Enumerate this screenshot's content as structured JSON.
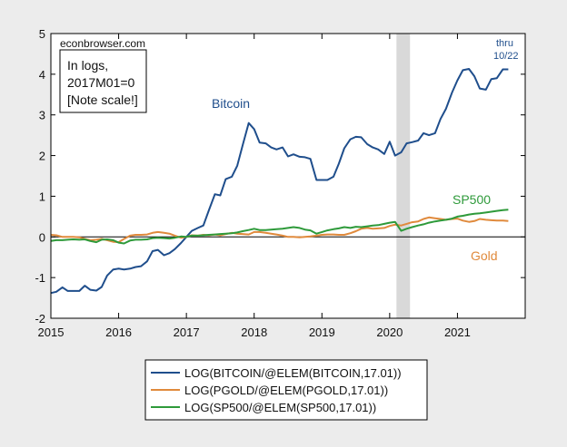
{
  "chart_data": {
    "type": "line",
    "source_label": "econbrowser.com",
    "note_lines": [
      "In logs,",
      "2017M01=0",
      "[Note scale!]"
    ],
    "thru_lines": [
      "thru",
      "10/22"
    ],
    "ylim": [
      -2,
      5
    ],
    "y_ticks": [
      {
        "value": -2,
        "label": "-2"
      },
      {
        "value": -1,
        "label": "-1"
      },
      {
        "value": 0,
        "label": "0"
      },
      {
        "value": 1,
        "label": "1"
      },
      {
        "value": 2,
        "label": "2"
      },
      {
        "value": 3,
        "label": "3"
      },
      {
        "value": 4,
        "label": "4"
      },
      {
        "value": 5,
        "label": "5"
      }
    ],
    "xlim": [
      2015.0,
      2022.0
    ],
    "x_ticks": [
      {
        "value": 2015,
        "label": "2015"
      },
      {
        "value": 2016,
        "label": "2016"
      },
      {
        "value": 2017,
        "label": "2017"
      },
      {
        "value": 2018,
        "label": "2018"
      },
      {
        "value": 2019,
        "label": "2019"
      },
      {
        "value": 2020,
        "label": "2020"
      },
      {
        "value": 2021,
        "label": "2021"
      }
    ],
    "recession_shade": {
      "start": 2020.1,
      "end": 2020.3
    },
    "series": [
      {
        "name": "LOG(BITCOIN/@ELEM(BITCOIN,17.01))",
        "inline_label": "Bitcoin",
        "color": "#1f4e8c",
        "x": [
          2015.0,
          2015.08,
          2015.17,
          2015.25,
          2015.33,
          2015.42,
          2015.5,
          2015.58,
          2015.67,
          2015.75,
          2015.83,
          2015.92,
          2016.0,
          2016.08,
          2016.17,
          2016.25,
          2016.33,
          2016.42,
          2016.5,
          2016.58,
          2016.67,
          2016.75,
          2016.83,
          2016.92,
          2017.0,
          2017.08,
          2017.17,
          2017.25,
          2017.33,
          2017.42,
          2017.5,
          2017.58,
          2017.67,
          2017.75,
          2017.83,
          2017.92,
          2018.0,
          2018.08,
          2018.17,
          2018.25,
          2018.33,
          2018.42,
          2018.5,
          2018.58,
          2018.67,
          2018.75,
          2018.83,
          2018.92,
          2019.0,
          2019.08,
          2019.17,
          2019.25,
          2019.33,
          2019.42,
          2019.5,
          2019.58,
          2019.67,
          2019.75,
          2019.83,
          2019.92,
          2020.0,
          2020.08,
          2020.17,
          2020.25,
          2020.33,
          2020.42,
          2020.5,
          2020.58,
          2020.67,
          2020.75,
          2020.83,
          2020.92,
          2021.0,
          2021.08,
          2021.17,
          2021.25,
          2021.33,
          2021.42,
          2021.5,
          2021.58,
          2021.67,
          2021.75
        ],
        "values": [
          -1.38,
          -1.35,
          -1.24,
          -1.33,
          -1.33,
          -1.33,
          -1.2,
          -1.3,
          -1.32,
          -1.23,
          -0.95,
          -0.8,
          -0.78,
          -0.8,
          -0.78,
          -0.74,
          -0.72,
          -0.6,
          -0.35,
          -0.32,
          -0.45,
          -0.4,
          -0.3,
          -0.15,
          0.0,
          0.15,
          0.22,
          0.28,
          0.65,
          1.05,
          1.02,
          1.42,
          1.48,
          1.75,
          2.25,
          2.8,
          2.65,
          2.32,
          2.3,
          2.2,
          2.15,
          2.2,
          1.98,
          2.03,
          1.97,
          1.96,
          1.92,
          1.4,
          1.4,
          1.4,
          1.48,
          1.8,
          2.18,
          2.4,
          2.46,
          2.45,
          2.28,
          2.2,
          2.15,
          2.04,
          2.34,
          2.0,
          2.08,
          2.3,
          2.33,
          2.37,
          2.55,
          2.5,
          2.55,
          2.9,
          3.15,
          3.55,
          3.85,
          4.1,
          4.13,
          3.95,
          3.65,
          3.62,
          3.88,
          3.9,
          4.12,
          4.12
        ]
      },
      {
        "name": "LOG(PGOLD/@ELEM(PGOLD,17.01))",
        "inline_label": "Gold",
        "color": "#e08a3c",
        "x": [
          2015.0,
          2015.08,
          2015.17,
          2015.25,
          2015.33,
          2015.42,
          2015.5,
          2015.58,
          2015.67,
          2015.75,
          2015.83,
          2015.92,
          2016.0,
          2016.08,
          2016.17,
          2016.25,
          2016.33,
          2016.42,
          2016.5,
          2016.58,
          2016.67,
          2016.75,
          2016.83,
          2016.92,
          2017.0,
          2017.08,
          2017.17,
          2017.25,
          2017.33,
          2017.42,
          2017.5,
          2017.58,
          2017.67,
          2017.75,
          2017.83,
          2017.92,
          2018.0,
          2018.08,
          2018.17,
          2018.25,
          2018.33,
          2018.42,
          2018.5,
          2018.58,
          2018.67,
          2018.75,
          2018.83,
          2018.92,
          2019.0,
          2019.08,
          2019.17,
          2019.25,
          2019.33,
          2019.42,
          2019.5,
          2019.58,
          2019.67,
          2019.75,
          2019.83,
          2019.92,
          2020.0,
          2020.08,
          2020.17,
          2020.25,
          2020.33,
          2020.42,
          2020.5,
          2020.58,
          2020.67,
          2020.75,
          2020.83,
          2020.92,
          2021.0,
          2021.08,
          2021.17,
          2021.25,
          2021.33,
          2021.42,
          2021.5,
          2021.58,
          2021.67,
          2021.75
        ],
        "values": [
          0.05,
          0.04,
          0.0,
          0.0,
          0.0,
          -0.01,
          -0.05,
          -0.08,
          -0.07,
          -0.05,
          -0.08,
          -0.12,
          -0.13,
          -0.05,
          0.03,
          0.05,
          0.05,
          0.06,
          0.1,
          0.12,
          0.1,
          0.08,
          0.03,
          -0.02,
          0.0,
          0.04,
          0.03,
          0.05,
          0.04,
          0.06,
          0.04,
          0.07,
          0.1,
          0.08,
          0.07,
          0.06,
          0.12,
          0.12,
          0.1,
          0.08,
          0.06,
          0.03,
          0.0,
          0.0,
          -0.01,
          0.0,
          0.01,
          0.03,
          0.05,
          0.06,
          0.06,
          0.05,
          0.05,
          0.09,
          0.14,
          0.2,
          0.22,
          0.2,
          0.21,
          0.22,
          0.27,
          0.3,
          0.28,
          0.32,
          0.36,
          0.38,
          0.44,
          0.48,
          0.46,
          0.44,
          0.42,
          0.44,
          0.45,
          0.4,
          0.37,
          0.39,
          0.44,
          0.42,
          0.41,
          0.4,
          0.4,
          0.39
        ]
      },
      {
        "name": "LOG(SP500/@ELEM(SP500,17.01))",
        "inline_label": "SP500",
        "color": "#2e9a3a",
        "x": [
          2015.0,
          2015.08,
          2015.17,
          2015.25,
          2015.33,
          2015.42,
          2015.5,
          2015.58,
          2015.67,
          2015.75,
          2015.83,
          2015.92,
          2016.0,
          2016.08,
          2016.17,
          2016.25,
          2016.33,
          2016.42,
          2016.5,
          2016.58,
          2016.67,
          2016.75,
          2016.83,
          2016.92,
          2017.0,
          2017.08,
          2017.17,
          2017.25,
          2017.33,
          2017.42,
          2017.5,
          2017.58,
          2017.67,
          2017.75,
          2017.83,
          2017.92,
          2018.0,
          2018.08,
          2018.17,
          2018.25,
          2018.33,
          2018.42,
          2018.5,
          2018.58,
          2018.67,
          2018.75,
          2018.83,
          2018.92,
          2019.0,
          2019.08,
          2019.17,
          2019.25,
          2019.33,
          2019.42,
          2019.5,
          2019.58,
          2019.67,
          2019.75,
          2019.83,
          2019.92,
          2020.0,
          2020.08,
          2020.17,
          2020.25,
          2020.33,
          2020.42,
          2020.5,
          2020.58,
          2020.67,
          2020.75,
          2020.83,
          2020.92,
          2021.0,
          2021.08,
          2021.17,
          2021.25,
          2021.33,
          2021.42,
          2021.5,
          2021.58,
          2021.67,
          2021.75
        ],
        "values": [
          -0.1,
          -0.08,
          -0.08,
          -0.07,
          -0.06,
          -0.07,
          -0.06,
          -0.1,
          -0.13,
          -0.07,
          -0.06,
          -0.08,
          -0.14,
          -0.16,
          -0.09,
          -0.07,
          -0.07,
          -0.06,
          -0.03,
          -0.02,
          -0.03,
          -0.04,
          -0.02,
          0.01,
          0.0,
          0.03,
          0.03,
          0.04,
          0.05,
          0.06,
          0.07,
          0.08,
          0.09,
          0.11,
          0.14,
          0.17,
          0.2,
          0.17,
          0.17,
          0.18,
          0.19,
          0.2,
          0.22,
          0.24,
          0.22,
          0.18,
          0.16,
          0.08,
          0.12,
          0.16,
          0.19,
          0.21,
          0.24,
          0.22,
          0.25,
          0.24,
          0.26,
          0.28,
          0.29,
          0.32,
          0.35,
          0.37,
          0.15,
          0.2,
          0.24,
          0.28,
          0.31,
          0.35,
          0.38,
          0.4,
          0.42,
          0.45,
          0.5,
          0.52,
          0.55,
          0.57,
          0.58,
          0.6,
          0.62,
          0.64,
          0.66,
          0.67
        ]
      }
    ],
    "legend_position": "bottom"
  }
}
